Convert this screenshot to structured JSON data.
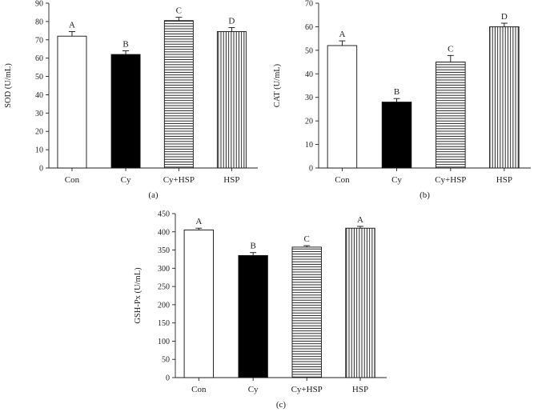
{
  "chart_data": [
    {
      "type": "bar",
      "panel_label": "(a)",
      "ylabel": "SOD (U/mL)",
      "xlabel": "",
      "ylim": [
        0,
        90
      ],
      "yticks": [
        0,
        10,
        20,
        30,
        40,
        50,
        60,
        70,
        80,
        90
      ],
      "categories": [
        "Con",
        "Cy",
        "Cy+HSP",
        "HSP"
      ],
      "values": [
        72,
        62,
        80.5,
        74.5
      ],
      "errors": [
        2.5,
        2.0,
        1.8,
        2.2
      ],
      "significance": [
        "A",
        "B",
        "C",
        "D"
      ],
      "fills": [
        "empty",
        "solid",
        "horizontal-lines",
        "vertical-lines"
      ],
      "grid": false,
      "legend": "none"
    },
    {
      "type": "bar",
      "panel_label": "(b)",
      "ylabel": "CAT (U/mL)",
      "xlabel": "",
      "ylim": [
        0,
        70
      ],
      "yticks": [
        0,
        10,
        20,
        30,
        40,
        50,
        60,
        70
      ],
      "categories": [
        "Con",
        "Cy",
        "Cy+HSP",
        "HSP"
      ],
      "values": [
        52,
        28,
        45,
        60
      ],
      "errors": [
        2.0,
        1.5,
        2.8,
        1.5
      ],
      "significance": [
        "A",
        "B",
        "C",
        "D"
      ],
      "fills": [
        "empty",
        "solid",
        "horizontal-lines",
        "vertical-lines"
      ],
      "grid": false,
      "legend": "none"
    },
    {
      "type": "bar",
      "panel_label": "(c)",
      "ylabel": "GSH-Px (U/mL)",
      "xlabel": "",
      "ylim": [
        0,
        450
      ],
      "yticks": [
        0,
        50,
        100,
        150,
        200,
        250,
        300,
        350,
        400,
        450
      ],
      "categories": [
        "Con",
        "Cy",
        "Cy+HSP",
        "HSP"
      ],
      "values": [
        405,
        335,
        358,
        410
      ],
      "errors": [
        5,
        8,
        4,
        5
      ],
      "significance": [
        "A",
        "B",
        "C",
        "A"
      ],
      "fills": [
        "empty",
        "solid",
        "horizontal-lines",
        "vertical-lines"
      ],
      "grid": false,
      "legend": "none"
    }
  ],
  "colors": {
    "ink": "#111111",
    "background": "#ffffff"
  }
}
